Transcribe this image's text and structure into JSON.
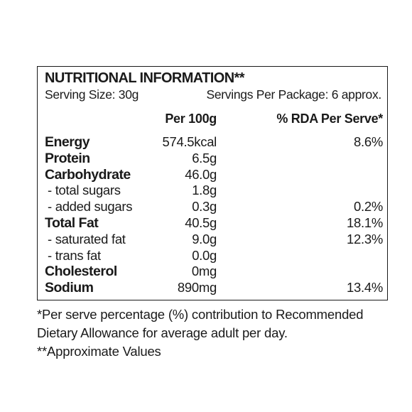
{
  "panel": {
    "title": "NUTRITIONAL INFORMATION**",
    "serving_size": "Serving Size: 30g",
    "servings_per_package": "Servings Per Package: 6 approx.",
    "col_per100g": "Per 100g",
    "col_rda": "% RDA Per Serve*",
    "rows": [
      {
        "label": "Energy",
        "per100g": "574.5kcal",
        "rda": "8.6%"
      },
      {
        "label": "Protein",
        "per100g": "6.5g",
        "rda": ""
      },
      {
        "label": "Carbohydrate",
        "per100g": "46.0g",
        "rda": ""
      },
      {
        "label": "- total sugars",
        "per100g": "1.8g",
        "rda": ""
      },
      {
        "label": "- added sugars",
        "per100g": "0.3g",
        "rda": "0.2%"
      },
      {
        "label": "Total Fat",
        "per100g": "40.5g",
        "rda": "18.1%"
      },
      {
        "label": "- saturated fat",
        "per100g": "9.0g",
        "rda": "12.3%"
      },
      {
        "label": "- trans fat",
        "per100g": "0.0g",
        "rda": ""
      },
      {
        "label": "Cholesterol",
        "per100g": "0mg",
        "rda": ""
      },
      {
        "label": "Sodium",
        "per100g": "890mg",
        "rda": "13.4%"
      }
    ]
  },
  "footnotes": {
    "line1": "*Per serve percentage (%) contribution to Recommended",
    "line2": "Dietary Allowance for average adult per day.",
    "line3": "**Approximate Values"
  }
}
